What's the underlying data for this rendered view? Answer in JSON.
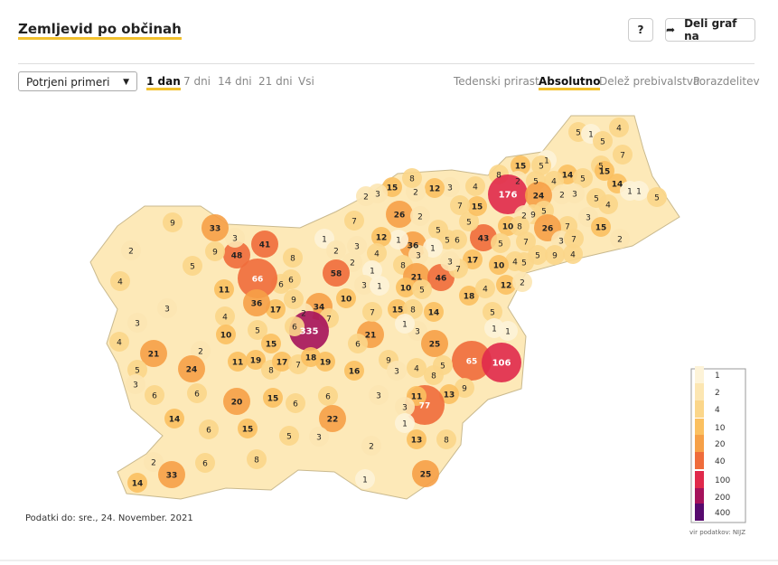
{
  "header": {
    "title": "Zemljevid po občinah",
    "help": "?",
    "share": "Deli graf na"
  },
  "controls": {
    "select": "Potrjeni primeri",
    "periods": [
      "1 dan",
      "7 dni",
      "14 dni",
      "21 dni",
      "Vsi"
    ],
    "active_period": 0,
    "modes": [
      "Tedenski prirast",
      "Absolutno",
      "Delež prebivalstva",
      "Porazdelitev"
    ],
    "active_mode": 1
  },
  "map": {
    "values": [
      5,
      1,
      4,
      5,
      7,
      1,
      15,
      5,
      5,
      14,
      8,
      2,
      5,
      4,
      5,
      15,
      14,
      1,
      1,
      5,
      176,
      24,
      2,
      3,
      5,
      4,
      9,
      5,
      2,
      10,
      8,
      3,
      15,
      7,
      26,
      3,
      7,
      2,
      9,
      4,
      5,
      7,
      43,
      5,
      4,
      5,
      10,
      12,
      2,
      17,
      5,
      6,
      5,
      15,
      7,
      4,
      3,
      12,
      2,
      8,
      15,
      2,
      3,
      26,
      2,
      5,
      36,
      1,
      3,
      1,
      12,
      7,
      1,
      2,
      3,
      4,
      2,
      8,
      21,
      46,
      7,
      3,
      1,
      3,
      1,
      10,
      5,
      18,
      4,
      58,
      10,
      34,
      2,
      7,
      335,
      9,
      6,
      6,
      6,
      17,
      8,
      66,
      36,
      11,
      41,
      48,
      3,
      33,
      9,
      9,
      5,
      2,
      4,
      3,
      3,
      4,
      21,
      2,
      4,
      10,
      5,
      15,
      24,
      5,
      3,
      6,
      6,
      14,
      11,
      19,
      8,
      17,
      7,
      18,
      19,
      16,
      21,
      6,
      7,
      15,
      8,
      14,
      3,
      1,
      25,
      5,
      1,
      1,
      65,
      106,
      9,
      3,
      4,
      8,
      5,
      9,
      13,
      77,
      20,
      15,
      6,
      6,
      3,
      11,
      3,
      22,
      3,
      6,
      15,
      5,
      1,
      2,
      13,
      8,
      6,
      8,
      2,
      33,
      14,
      25,
      1
    ],
    "legend": [
      {
        "value": 1,
        "color": "#fdf3d8"
      },
      {
        "value": 2,
        "color": "#fce6b2"
      },
      {
        "value": 4,
        "color": "#fbd68a"
      },
      {
        "value": 10,
        "color": "#fbc060"
      },
      {
        "value": 20,
        "color": "#f6a047"
      },
      {
        "value": 40,
        "color": "#ef6c3b"
      },
      {
        "value": 100,
        "color": "#e0294b"
      },
      {
        "value": 200,
        "color": "#a5125b"
      },
      {
        "value": 400,
        "color": "#570a6e"
      }
    ]
  },
  "footer": {
    "date": "Podatki do: sre., 24. November. 2021",
    "source": "vir podatkov: NIJZ"
  }
}
